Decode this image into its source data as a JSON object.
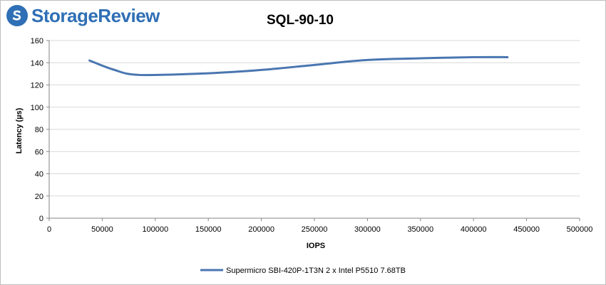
{
  "brand": {
    "name": "StorageReview",
    "logo_icon": "storagereview-logo-icon",
    "color": "#2f6fb5"
  },
  "chart_data": {
    "type": "line",
    "title": "SQL-90-10",
    "xlabel": "IOPS",
    "ylabel": "Latency (µs)",
    "xlim": [
      0,
      500000
    ],
    "ylim": [
      0,
      160
    ],
    "x_ticks": [
      0,
      50000,
      100000,
      150000,
      200000,
      250000,
      300000,
      350000,
      400000,
      450000,
      500000
    ],
    "y_ticks": [
      0,
      20,
      40,
      60,
      80,
      100,
      120,
      140,
      160
    ],
    "grid": "horizontal",
    "legend_position": "bottom",
    "series": [
      {
        "name": "Supermicro SBI-420P-1T3N 2 x Intel P5510 7.68TB",
        "color": "#4a76b1",
        "points": [
          [
            38000,
            142
          ],
          [
            60000,
            134
          ],
          [
            85000,
            129
          ],
          [
            150000,
            130.5
          ],
          [
            200000,
            133.5
          ],
          [
            250000,
            138
          ],
          [
            300000,
            142.5
          ],
          [
            350000,
            144
          ],
          [
            400000,
            145
          ],
          [
            432000,
            145
          ]
        ]
      }
    ]
  }
}
